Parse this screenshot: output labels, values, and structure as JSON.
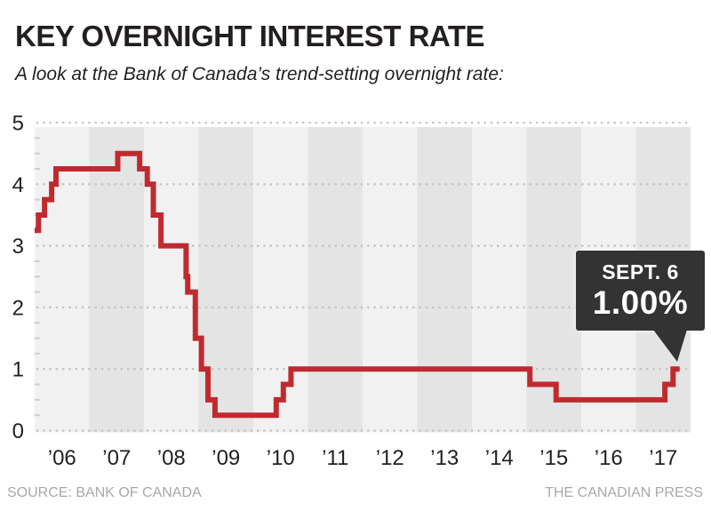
{
  "header": {
    "title": "KEY OVERNIGHT INTEREST RATE",
    "subtitle": "A look at the Bank of Canada’s trend-setting overnight rate:"
  },
  "callout": {
    "date": "SEPT. 6",
    "value": "1.00%"
  },
  "footer": {
    "source": "SOURCE: BANK OF CANADA",
    "credit": "THE CANADIAN PRESS"
  },
  "chart_data": {
    "type": "line",
    "step": true,
    "title": "KEY OVERNIGHT INTEREST RATE",
    "xlabel": "",
    "ylabel": "",
    "ylim": [
      0,
      5
    ],
    "y_major_ticks": [
      0,
      1,
      2,
      3,
      4,
      5
    ],
    "y_minor_step": 0.25,
    "x_range_years": [
      2006,
      2018
    ],
    "x_tick_labels": [
      "’06",
      "’07",
      "’08",
      "’09",
      "’10",
      "’11",
      "’12",
      "’13",
      "’14",
      "’15",
      "’16",
      "’17"
    ],
    "grid": "dotted horizontal lines at integer rates",
    "legend": "none",
    "line_color": "#c02a2f",
    "band_colors": [
      "#f1f1f1",
      "#e4e4e4"
    ],
    "dot_color": "#c3c3c3",
    "tick_color": "#cfcfcf",
    "label_color": "#231f20",
    "points_year_rate": [
      [
        2006.0,
        3.25
      ],
      [
        2006.07,
        3.5
      ],
      [
        2006.18,
        3.75
      ],
      [
        2006.31,
        4.0
      ],
      [
        2006.39,
        4.25
      ],
      [
        2007.52,
        4.5
      ],
      [
        2007.92,
        4.25
      ],
      [
        2008.06,
        4.0
      ],
      [
        2008.17,
        3.5
      ],
      [
        2008.31,
        3.0
      ],
      [
        2008.77,
        2.5
      ],
      [
        2008.8,
        2.25
      ],
      [
        2008.94,
        1.5
      ],
      [
        2009.05,
        1.0
      ],
      [
        2009.17,
        0.5
      ],
      [
        2009.3,
        0.25
      ],
      [
        2010.42,
        0.5
      ],
      [
        2010.55,
        0.75
      ],
      [
        2010.69,
        1.0
      ],
      [
        2015.06,
        0.75
      ],
      [
        2015.54,
        0.5
      ],
      [
        2017.53,
        0.75
      ],
      [
        2017.68,
        1.0
      ]
    ],
    "end_year": 2017.8,
    "annotation": {
      "label": "SEPT. 6",
      "value": "1.00%",
      "at_year": 2017.68,
      "at_rate": 1.0
    }
  }
}
